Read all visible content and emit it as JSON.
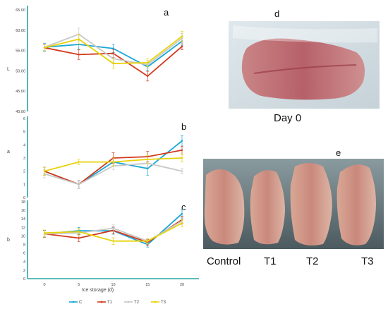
{
  "chart_data": [
    {
      "type": "line",
      "panel": "a",
      "ylabel": "L",
      "x": [
        0,
        5,
        10,
        15,
        20
      ],
      "ylim": [
        40,
        65
      ],
      "yticks": [
        "40.00",
        "45.00",
        "50.00",
        "55.00",
        "60.00",
        "65.00"
      ],
      "series": [
        {
          "name": "C",
          "values": [
            55.8,
            56.5,
            55.5,
            51.0,
            57.3
          ],
          "err": [
            1.0,
            1.2,
            1.0,
            1.0,
            1.0
          ]
        },
        {
          "name": "T1",
          "values": [
            55.7,
            54.0,
            54.3,
            48.7,
            56.0
          ],
          "err": [
            0.8,
            1.2,
            1.0,
            1.2,
            0.8
          ]
        },
        {
          "name": "T2",
          "values": [
            55.8,
            59.0,
            53.0,
            51.5,
            58.0
          ],
          "err": [
            0.8,
            1.5,
            1.0,
            1.0,
            1.2
          ]
        },
        {
          "name": "T3",
          "values": [
            55.7,
            57.8,
            51.8,
            52.0,
            58.5
          ],
          "err": [
            0.8,
            1.2,
            1.2,
            1.0,
            1.2
          ]
        }
      ]
    },
    {
      "type": "line",
      "panel": "b",
      "ylabel": "a",
      "x": [
        0,
        5,
        10,
        15,
        20
      ],
      "ylim": [
        0,
        6
      ],
      "yticks": [
        "0",
        "1",
        "2",
        "3",
        "4",
        "5",
        "6"
      ],
      "series": [
        {
          "name": "C",
          "values": [
            2.0,
            1.0,
            2.7,
            2.2,
            4.3
          ],
          "err": [
            0.3,
            0.3,
            0.3,
            0.5,
            0.4
          ]
        },
        {
          "name": "T1",
          "values": [
            2.0,
            1.0,
            3.0,
            3.1,
            3.6
          ],
          "err": [
            0.3,
            0.3,
            0.4,
            0.4,
            0.3
          ]
        },
        {
          "name": "T2",
          "values": [
            1.8,
            1.0,
            2.4,
            2.6,
            2.0
          ],
          "err": [
            0.3,
            0.3,
            0.3,
            0.3,
            0.2
          ]
        },
        {
          "name": "T3",
          "values": [
            2.0,
            2.7,
            2.7,
            2.9,
            3.0
          ],
          "err": [
            0.3,
            0.2,
            0.3,
            0.3,
            0.3
          ]
        }
      ]
    },
    {
      "type": "line",
      "panel": "c",
      "ylabel": "b",
      "xlabel": "Ice storage (d)",
      "x": [
        0,
        5,
        10,
        15,
        20
      ],
      "ylim": [
        0,
        18
      ],
      "yticks": [
        "0",
        "2",
        "4",
        "6",
        "8",
        "10",
        "12",
        "14",
        "16",
        "18"
      ],
      "xticks": [
        "0",
        "5",
        "10",
        "15",
        "20"
      ],
      "series": [
        {
          "name": "C",
          "values": [
            10.5,
            11.2,
            11.2,
            8.0,
            15.2
          ],
          "err": [
            0.8,
            0.8,
            0.8,
            0.6,
            1.0
          ]
        },
        {
          "name": "T1",
          "values": [
            10.5,
            9.5,
            11.3,
            8.5,
            13.8
          ],
          "err": [
            0.8,
            0.8,
            0.8,
            0.7,
            0.8
          ]
        },
        {
          "name": "T2",
          "values": [
            10.5,
            10.7,
            11.8,
            8.8,
            13.5
          ],
          "err": [
            0.7,
            0.8,
            0.8,
            0.7,
            0.8
          ]
        },
        {
          "name": "T3",
          "values": [
            10.7,
            11.0,
            8.8,
            8.8,
            13.0
          ],
          "err": [
            0.7,
            0.8,
            0.8,
            0.7,
            0.8
          ]
        }
      ]
    }
  ],
  "series_colors": {
    "C": "#1aa6d6",
    "T1": "#d1391b",
    "T2": "#c8c8c8",
    "T3": "#e7d20a"
  },
  "legend": [
    "C",
    "T1",
    "T2",
    "T3"
  ],
  "photos": {
    "d": {
      "letter": "d",
      "caption": "Day 0"
    },
    "e": {
      "letter": "e",
      "labels": [
        "Control",
        "T1",
        "T2",
        "T3"
      ]
    }
  }
}
